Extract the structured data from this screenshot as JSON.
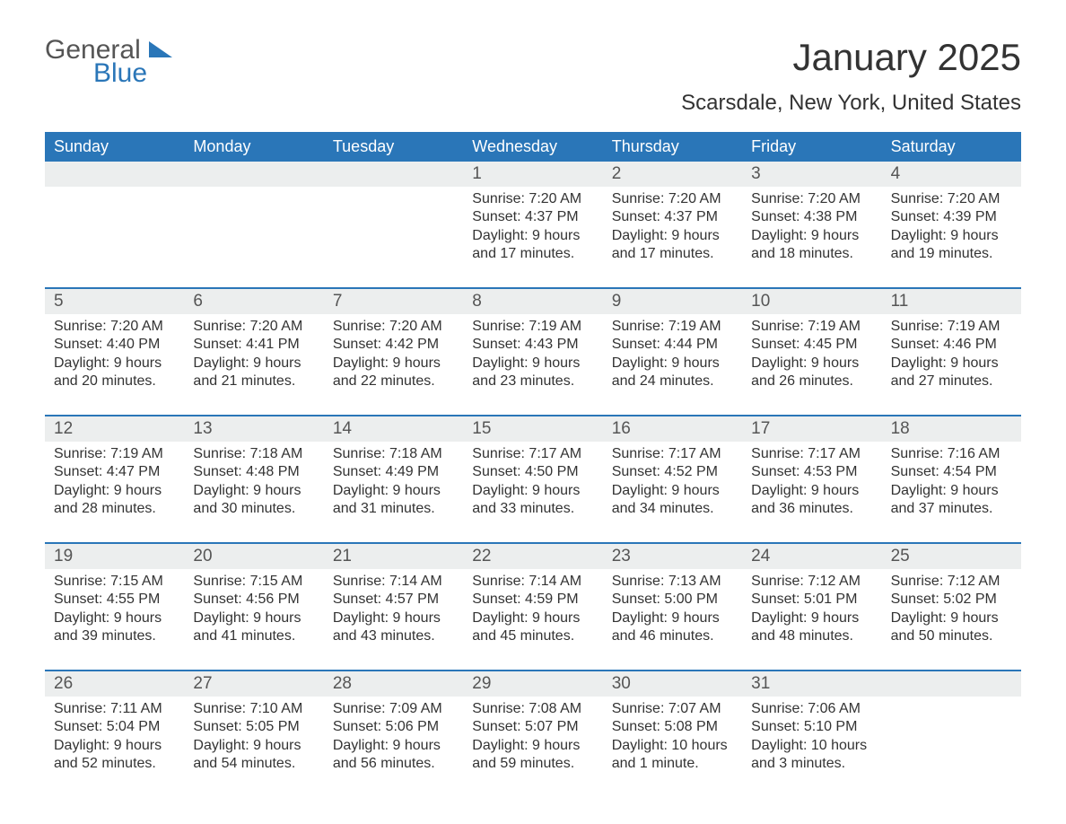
{
  "logo": {
    "line1": "General",
    "line2": "Blue"
  },
  "title": "January 2025",
  "subtitle": "Scarsdale, New York, United States",
  "colors": {
    "accent": "#2a76b8",
    "band": "#eceeee",
    "text": "#333333",
    "muted": "#555555",
    "bg": "#ffffff"
  },
  "weekdays": [
    "Sunday",
    "Monday",
    "Tuesday",
    "Wednesday",
    "Thursday",
    "Friday",
    "Saturday"
  ],
  "weeks": [
    [
      null,
      null,
      null,
      {
        "n": "1",
        "sunrise": "7:20 AM",
        "sunset": "4:37 PM",
        "daylight": "9 hours and 17 minutes."
      },
      {
        "n": "2",
        "sunrise": "7:20 AM",
        "sunset": "4:37 PM",
        "daylight": "9 hours and 17 minutes."
      },
      {
        "n": "3",
        "sunrise": "7:20 AM",
        "sunset": "4:38 PM",
        "daylight": "9 hours and 18 minutes."
      },
      {
        "n": "4",
        "sunrise": "7:20 AM",
        "sunset": "4:39 PM",
        "daylight": "9 hours and 19 minutes."
      }
    ],
    [
      {
        "n": "5",
        "sunrise": "7:20 AM",
        "sunset": "4:40 PM",
        "daylight": "9 hours and 20 minutes."
      },
      {
        "n": "6",
        "sunrise": "7:20 AM",
        "sunset": "4:41 PM",
        "daylight": "9 hours and 21 minutes."
      },
      {
        "n": "7",
        "sunrise": "7:20 AM",
        "sunset": "4:42 PM",
        "daylight": "9 hours and 22 minutes."
      },
      {
        "n": "8",
        "sunrise": "7:19 AM",
        "sunset": "4:43 PM",
        "daylight": "9 hours and 23 minutes."
      },
      {
        "n": "9",
        "sunrise": "7:19 AM",
        "sunset": "4:44 PM",
        "daylight": "9 hours and 24 minutes."
      },
      {
        "n": "10",
        "sunrise": "7:19 AM",
        "sunset": "4:45 PM",
        "daylight": "9 hours and 26 minutes."
      },
      {
        "n": "11",
        "sunrise": "7:19 AM",
        "sunset": "4:46 PM",
        "daylight": "9 hours and 27 minutes."
      }
    ],
    [
      {
        "n": "12",
        "sunrise": "7:19 AM",
        "sunset": "4:47 PM",
        "daylight": "9 hours and 28 minutes."
      },
      {
        "n": "13",
        "sunrise": "7:18 AM",
        "sunset": "4:48 PM",
        "daylight": "9 hours and 30 minutes."
      },
      {
        "n": "14",
        "sunrise": "7:18 AM",
        "sunset": "4:49 PM",
        "daylight": "9 hours and 31 minutes."
      },
      {
        "n": "15",
        "sunrise": "7:17 AM",
        "sunset": "4:50 PM",
        "daylight": "9 hours and 33 minutes."
      },
      {
        "n": "16",
        "sunrise": "7:17 AM",
        "sunset": "4:52 PM",
        "daylight": "9 hours and 34 minutes."
      },
      {
        "n": "17",
        "sunrise": "7:17 AM",
        "sunset": "4:53 PM",
        "daylight": "9 hours and 36 minutes."
      },
      {
        "n": "18",
        "sunrise": "7:16 AM",
        "sunset": "4:54 PM",
        "daylight": "9 hours and 37 minutes."
      }
    ],
    [
      {
        "n": "19",
        "sunrise": "7:15 AM",
        "sunset": "4:55 PM",
        "daylight": "9 hours and 39 minutes."
      },
      {
        "n": "20",
        "sunrise": "7:15 AM",
        "sunset": "4:56 PM",
        "daylight": "9 hours and 41 minutes."
      },
      {
        "n": "21",
        "sunrise": "7:14 AM",
        "sunset": "4:57 PM",
        "daylight": "9 hours and 43 minutes."
      },
      {
        "n": "22",
        "sunrise": "7:14 AM",
        "sunset": "4:59 PM",
        "daylight": "9 hours and 45 minutes."
      },
      {
        "n": "23",
        "sunrise": "7:13 AM",
        "sunset": "5:00 PM",
        "daylight": "9 hours and 46 minutes."
      },
      {
        "n": "24",
        "sunrise": "7:12 AM",
        "sunset": "5:01 PM",
        "daylight": "9 hours and 48 minutes."
      },
      {
        "n": "25",
        "sunrise": "7:12 AM",
        "sunset": "5:02 PM",
        "daylight": "9 hours and 50 minutes."
      }
    ],
    [
      {
        "n": "26",
        "sunrise": "7:11 AM",
        "sunset": "5:04 PM",
        "daylight": "9 hours and 52 minutes."
      },
      {
        "n": "27",
        "sunrise": "7:10 AM",
        "sunset": "5:05 PM",
        "daylight": "9 hours and 54 minutes."
      },
      {
        "n": "28",
        "sunrise": "7:09 AM",
        "sunset": "5:06 PM",
        "daylight": "9 hours and 56 minutes."
      },
      {
        "n": "29",
        "sunrise": "7:08 AM",
        "sunset": "5:07 PM",
        "daylight": "9 hours and 59 minutes."
      },
      {
        "n": "30",
        "sunrise": "7:07 AM",
        "sunset": "5:08 PM",
        "daylight": "10 hours and 1 minute."
      },
      {
        "n": "31",
        "sunrise": "7:06 AM",
        "sunset": "5:10 PM",
        "daylight": "10 hours and 3 minutes."
      },
      null
    ]
  ],
  "labels": {
    "sunrise": "Sunrise:",
    "sunset": "Sunset:",
    "daylight": "Daylight:"
  }
}
